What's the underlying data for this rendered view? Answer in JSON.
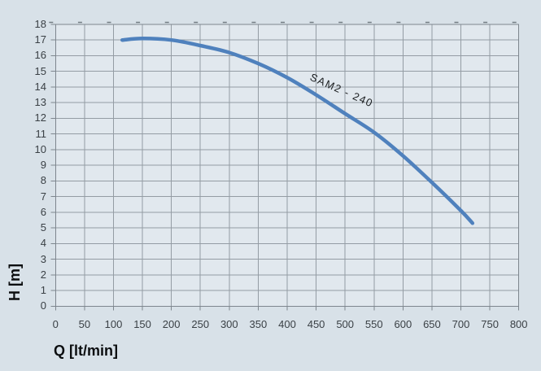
{
  "chart": {
    "y_axis_title": "H [m]",
    "x_axis_title": "Q [lt/min]",
    "series_label": "SAM2 - 240",
    "colors": {
      "outer_bg": "#d8e1e8",
      "plot_bg": "#e1e8ee",
      "grid": "#949ca4",
      "border": "#7e868e",
      "tick_mark": "#737b83",
      "curve": "#4f81bd",
      "tick_text": "#3a4045",
      "title_text": "#0c0e10"
    }
  },
  "chart_data": {
    "type": "line",
    "title": "",
    "xlabel": "Q [lt/min]",
    "ylabel": "H [m]",
    "xlim": [
      0,
      800
    ],
    "ylim": [
      0,
      18
    ],
    "x_ticks": [
      0,
      50,
      100,
      150,
      200,
      250,
      300,
      350,
      400,
      450,
      500,
      550,
      600,
      650,
      700,
      750,
      800
    ],
    "y_ticks": [
      0,
      1,
      2,
      3,
      4,
      5,
      6,
      7,
      8,
      9,
      10,
      11,
      12,
      13,
      14,
      15,
      16,
      17,
      18
    ],
    "grid": true,
    "legend": "none",
    "series": [
      {
        "name": "SAM2 - 240",
        "points": [
          [
            115,
            17.0
          ],
          [
            150,
            17.1
          ],
          [
            200,
            17.0
          ],
          [
            250,
            16.65
          ],
          [
            300,
            16.2
          ],
          [
            350,
            15.5
          ],
          [
            400,
            14.6
          ],
          [
            450,
            13.5
          ],
          [
            500,
            12.3
          ],
          [
            550,
            11.1
          ],
          [
            600,
            9.6
          ],
          [
            650,
            7.9
          ],
          [
            700,
            6.1
          ],
          [
            720,
            5.3
          ]
        ]
      }
    ]
  }
}
